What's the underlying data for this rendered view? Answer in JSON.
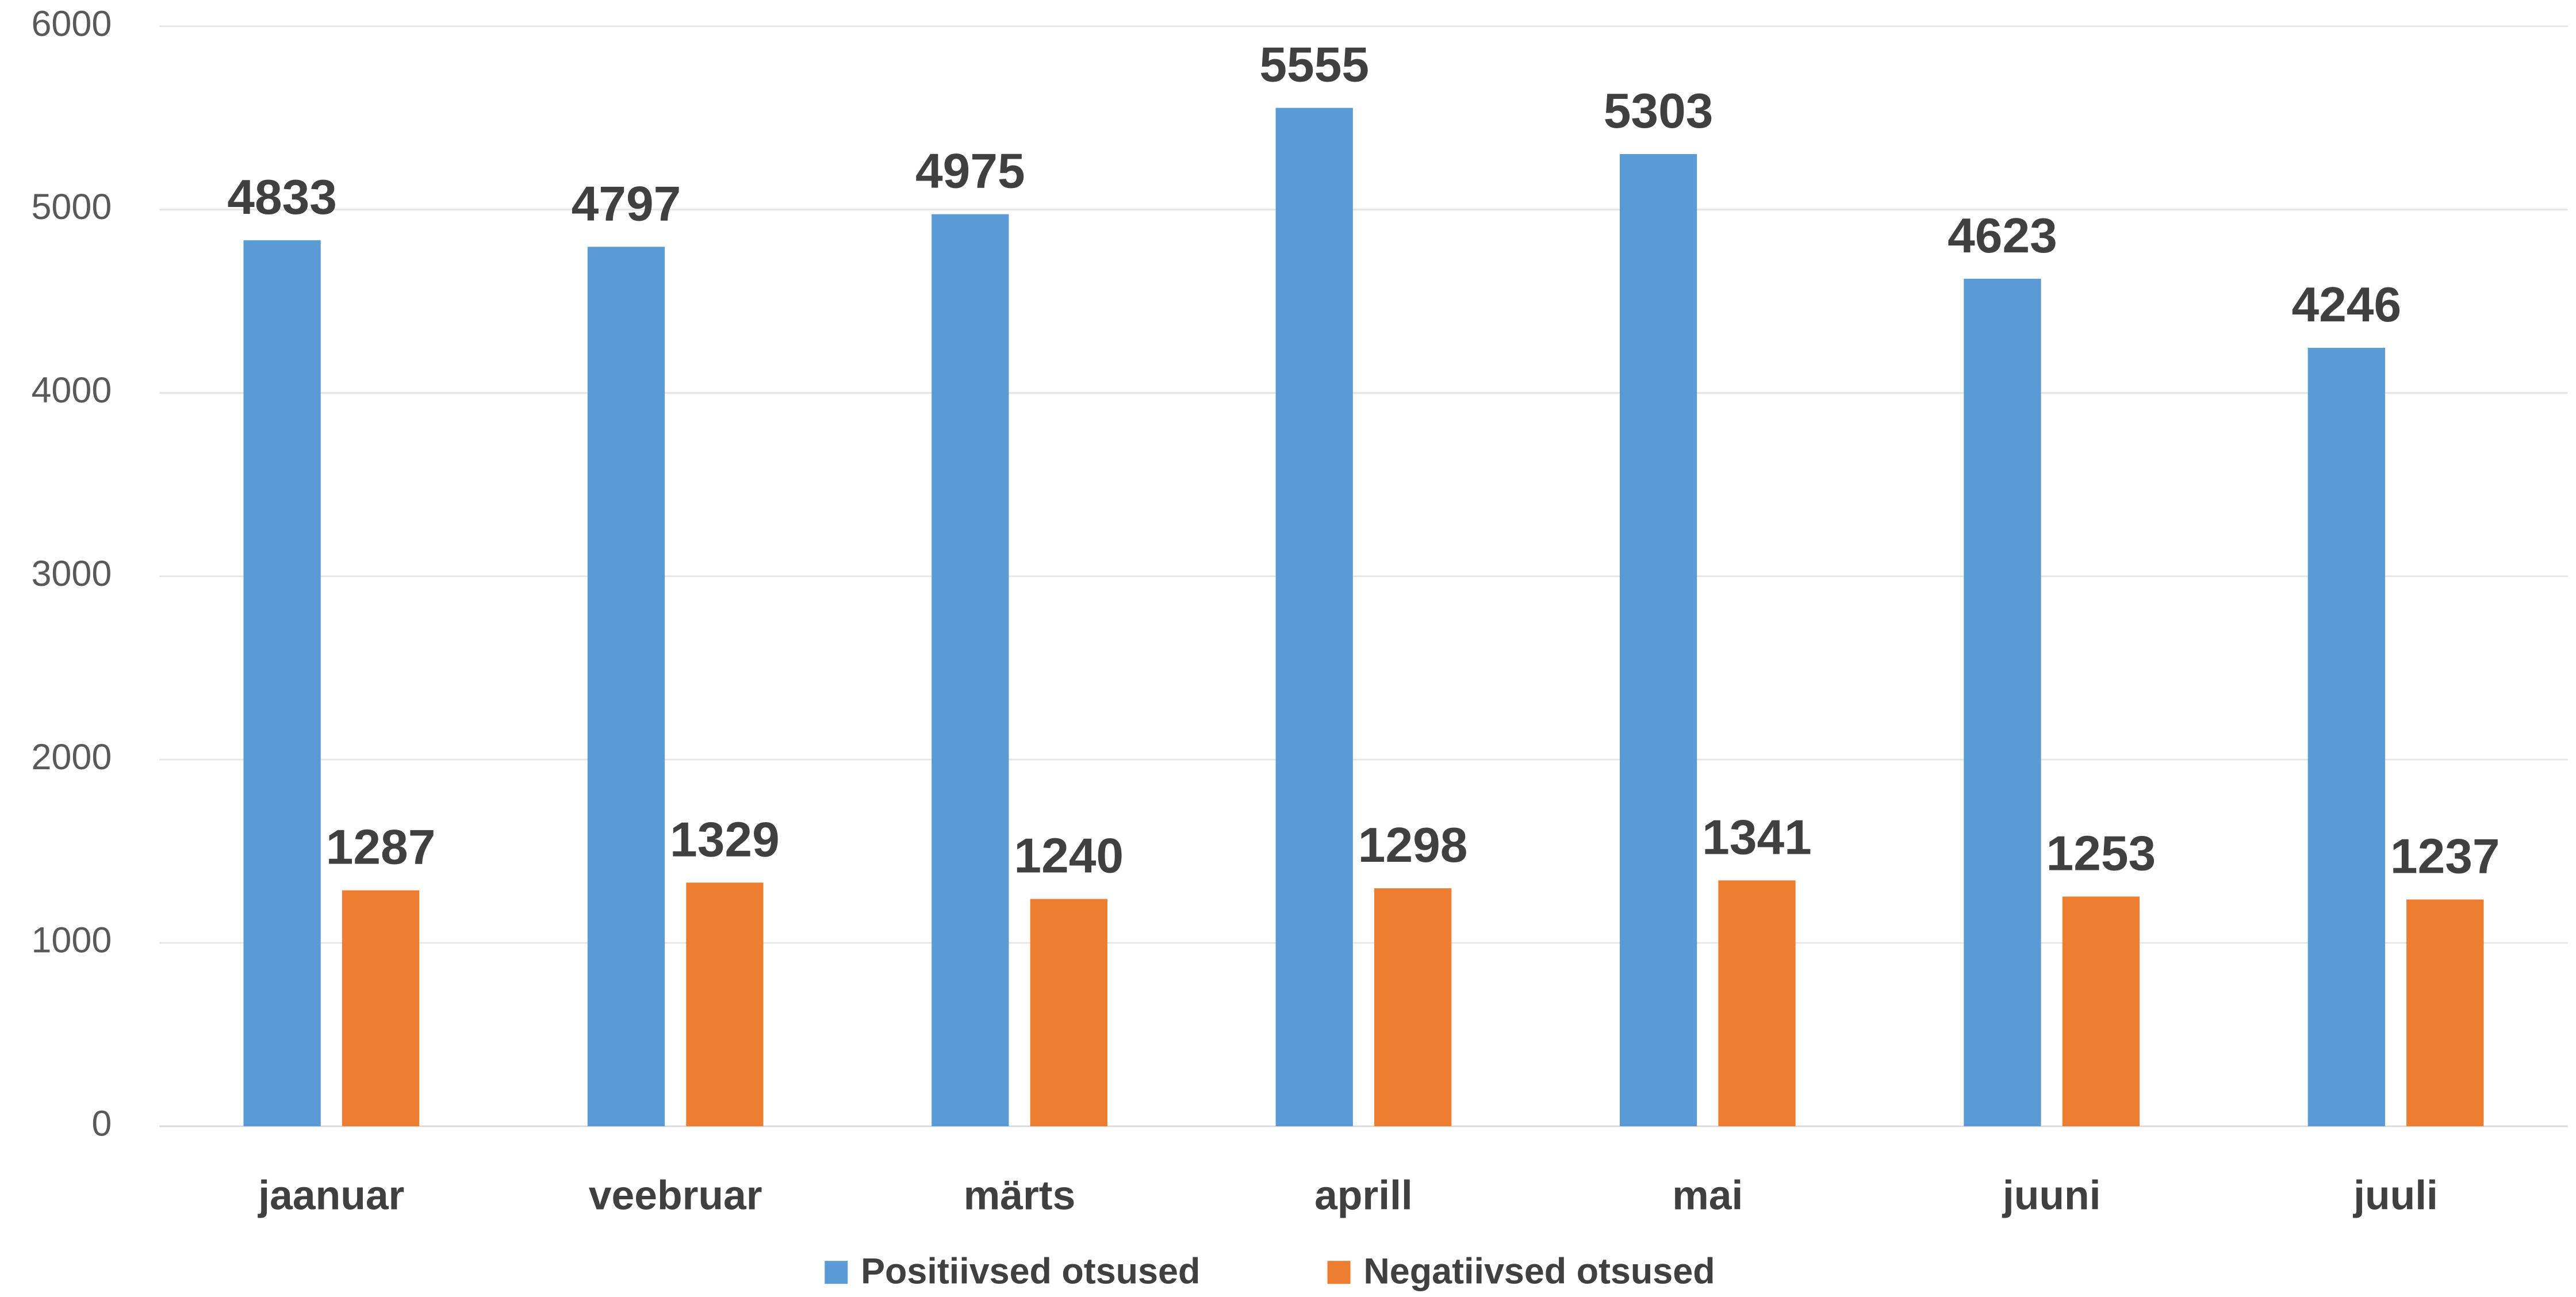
{
  "chart_data": {
    "type": "bar",
    "categories": [
      "jaanuar",
      "veebruar",
      "märts",
      "aprill",
      "mai",
      "juuni",
      "juuli"
    ],
    "series": [
      {
        "name": "Positiivsed otsused",
        "color": "#5b9bd5",
        "values": [
          4833,
          4797,
          4975,
          5555,
          5303,
          4623,
          4246
        ]
      },
      {
        "name": "Negatiivsed otsused",
        "color": "#ed7d31",
        "values": [
          1287,
          1329,
          1240,
          1298,
          1341,
          1253,
          1237
        ]
      }
    ],
    "ylim": [
      0,
      6000
    ],
    "yticks": [
      0,
      1000,
      2000,
      3000,
      4000,
      5000,
      6000
    ],
    "grid": true,
    "legend": "bottom"
  }
}
